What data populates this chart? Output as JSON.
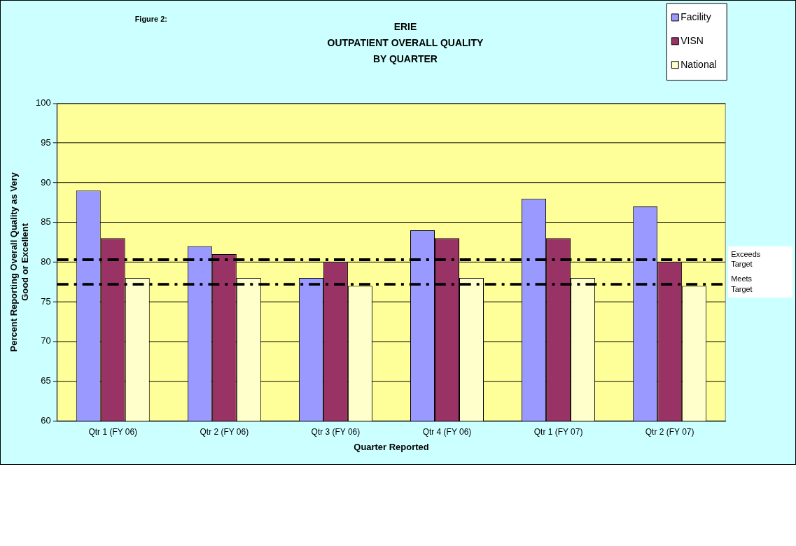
{
  "chart_data": {
    "type": "bar",
    "title": "ERIE\nOUTPATIENT OVERALL QUALITY\nBY QUARTER",
    "annotations": [
      "Figure 2:"
    ],
    "xlabel": "Quarter Reported",
    "ylabel": "Percent Reporting Overall Quality as Very\nGood or Excellent",
    "categories": [
      "Qtr 1 (FY 06)",
      "Qtr 2 (FY 06)",
      "Qtr 3 (FY 06)",
      "Qtr 4 (FY 06)",
      "Qtr 1 (FY 07)",
      "Qtr 2 (FY 07)"
    ],
    "series": [
      {
        "name": "Facility",
        "color": "#9999ff",
        "values": [
          89,
          82,
          78,
          84,
          88,
          87
        ]
      },
      {
        "name": "VISN",
        "color": "#993366",
        "values": [
          83,
          81,
          80,
          83,
          83,
          80
        ]
      },
      {
        "name": "National",
        "color": "#ffffcc",
        "values": [
          78,
          78,
          77,
          78,
          78,
          77
        ]
      }
    ],
    "ylim": [
      60,
      100
    ],
    "yticks": [
      60,
      65,
      70,
      75,
      80,
      85,
      90,
      95,
      100
    ],
    "grid": "y",
    "legend": "top right",
    "ref_lines": [
      {
        "axis": "y",
        "value": 80.3,
        "label": "Exceeds\nTarget",
        "color": "#000000",
        "line_style": "dashdot"
      },
      {
        "axis": "y",
        "value": 77.2,
        "label": "Meets\nTarget",
        "color": "#000000",
        "line_style": "dashdot"
      }
    ]
  }
}
